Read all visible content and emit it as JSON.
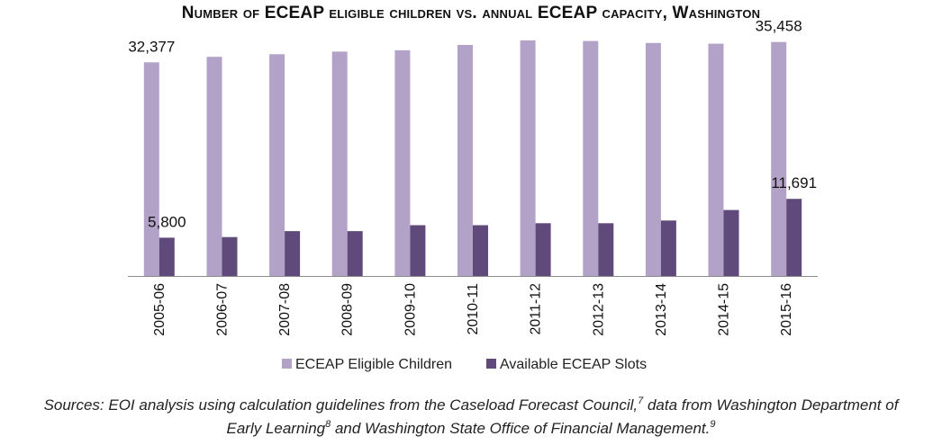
{
  "chart_data": {
    "type": "bar",
    "title": "Number of ECEAP eligible children vs. annual ECEAP capacity, Washington",
    "xlabel": "",
    "ylabel": "",
    "ylim": [
      0,
      38000
    ],
    "grid": false,
    "legend_position": "bottom",
    "categories": [
      "2005-06",
      "2006-07",
      "2007-08",
      "2008-09",
      "2009-10",
      "2010-11",
      "2011-12",
      "2012-13",
      "2013-14",
      "2014-15",
      "2015-16"
    ],
    "series": [
      {
        "name": "ECEAP Eligible Children",
        "color": "#b3a2c7",
        "values": [
          32377,
          33200,
          33600,
          34000,
          34200,
          35000,
          35700,
          35600,
          35300,
          35200,
          35458
        ]
      },
      {
        "name": "Available ECEAP Slots",
        "color": "#604a7b",
        "values": [
          5800,
          5900,
          6800,
          6800,
          7700,
          7700,
          8000,
          8000,
          8400,
          10000,
          11691
        ]
      }
    ],
    "data_labels": [
      {
        "series": 0,
        "index": 0,
        "text": "32,377"
      },
      {
        "series": 0,
        "index": 10,
        "text": "35,458"
      },
      {
        "series": 1,
        "index": 0,
        "text": "5,800"
      },
      {
        "series": 1,
        "index": 10,
        "text": "11,691"
      }
    ]
  },
  "source": {
    "line1_text": "Sources: EOI analysis using calculation guidelines from the Caseload Forecast Council,",
    "line1_sup": "7",
    "line1_tail": " data from Washington Department of",
    "line2_text": "Early Learning",
    "line2_sup": "8",
    "line2_tail": "  and Washington State Office of Financial Management.",
    "line2_sup2": "9"
  }
}
